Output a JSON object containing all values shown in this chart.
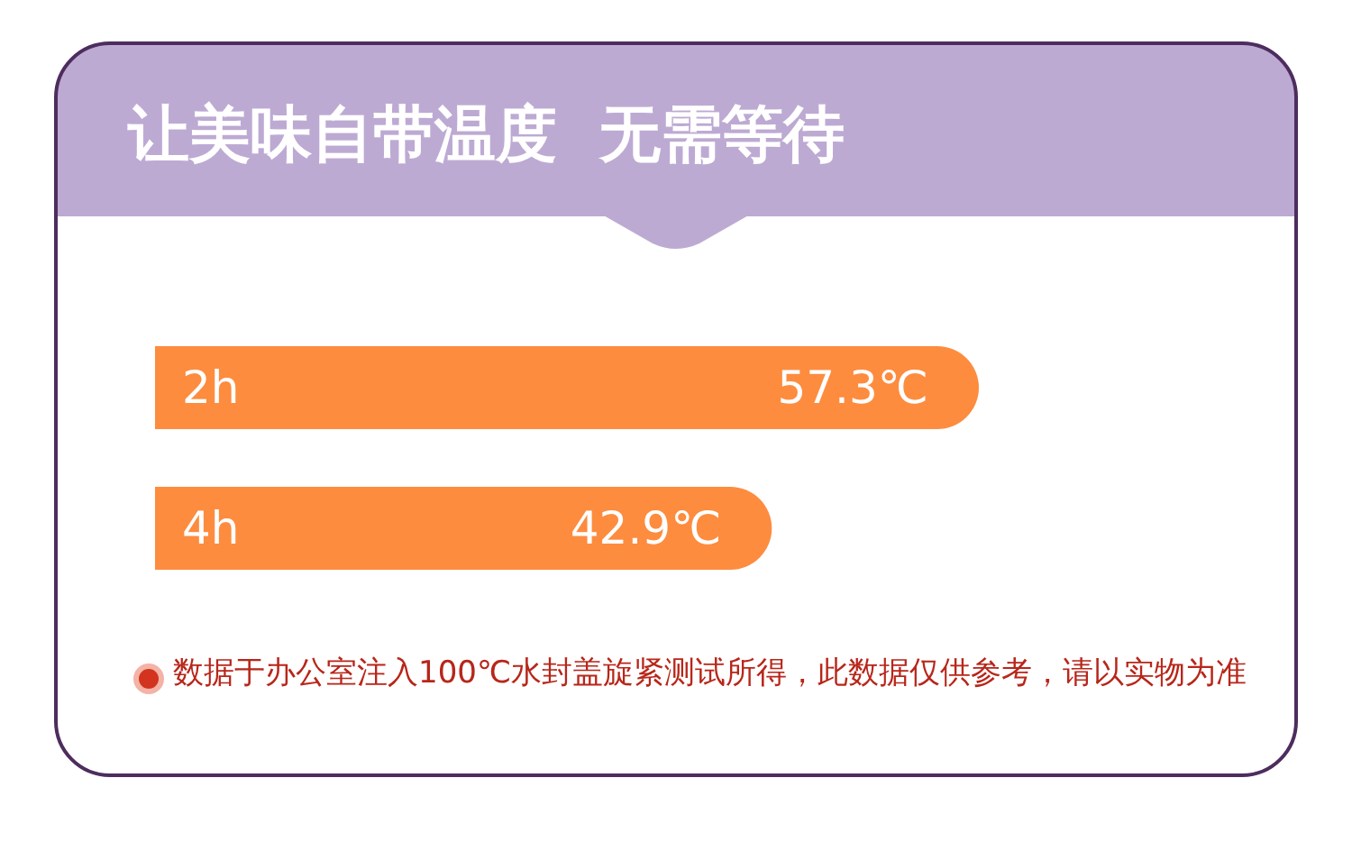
{
  "chart_data": {
    "type": "bar",
    "orientation": "horizontal",
    "title": "让美味自带温度  无需等待",
    "categories": [
      "2h",
      "4h"
    ],
    "values": [
      57.3,
      42.9
    ],
    "color": "#fd8c3f",
    "value_labels": [
      "57.3℃",
      "42.9℃"
    ],
    "tick_labels": "y",
    "annotations": [
      "数据于办公室注入100℃水封盖旋紧测试所得，此数据仅供参考，请以实物为准"
    ]
  }
}
